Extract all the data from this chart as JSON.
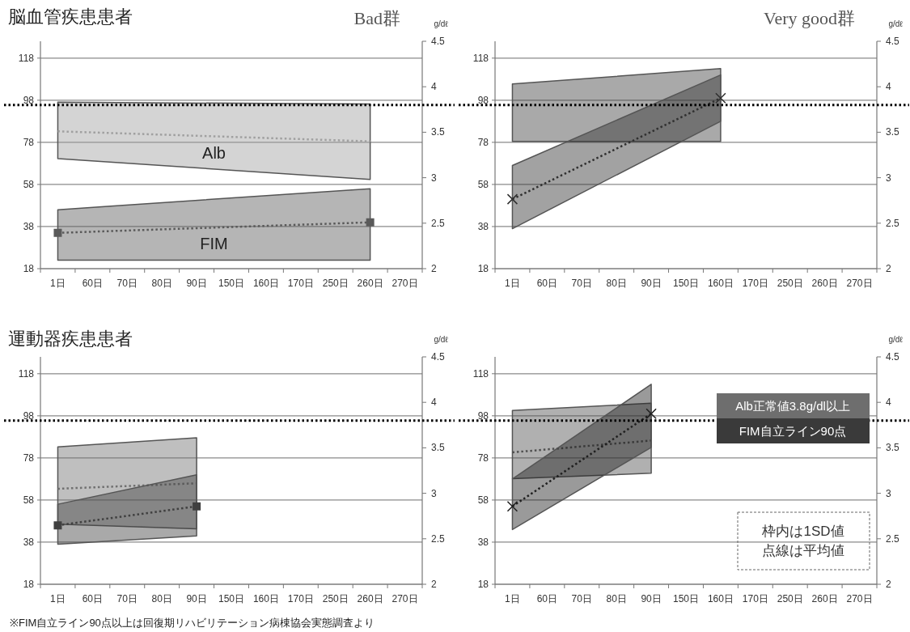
{
  "chart_data": [
    {
      "type": "line",
      "title": "脳血管疾患患者",
      "subtitle": "Bad群",
      "y2label": "g/dℓ",
      "categories": [
        "1日",
        "60日",
        "70日",
        "80日",
        "90日",
        "150日",
        "160日",
        "170日",
        "250日",
        "260日",
        "270日"
      ],
      "ylim": [
        18,
        126
      ],
      "yticks": [
        18,
        38,
        58,
        78,
        98,
        118
      ],
      "y2lim": [
        2,
        4.5
      ],
      "y2ticks": [
        2,
        2.5,
        3,
        3.5,
        4,
        4.5
      ],
      "grid": "y",
      "ref_lines": [
        {
          "axis": "y2",
          "value": 3.8,
          "color": "#000000",
          "line_style": "dotted"
        }
      ],
      "series": [
        {
          "name": "Alb",
          "axis": "y2",
          "color": "#a0a0a0",
          "line_style": "dotted",
          "values": [
            3.51,
            null,
            null,
            null,
            null,
            null,
            null,
            null,
            null,
            3.4,
            null
          ],
          "lower": [
            3.21,
            null,
            null,
            null,
            null,
            null,
            null,
            null,
            null,
            2.98,
            null
          ],
          "upper": [
            3.83,
            null,
            null,
            null,
            null,
            null,
            null,
            null,
            null,
            3.81,
            null
          ]
        },
        {
          "name": "FIM",
          "axis": "y",
          "color": "#5a5a5a",
          "line_style": "dotted",
          "marker": "square",
          "values": [
            35,
            null,
            null,
            null,
            null,
            null,
            null,
            null,
            null,
            40,
            null
          ],
          "lower": [
            22,
            null,
            null,
            null,
            null,
            null,
            null,
            null,
            null,
            22,
            null
          ],
          "upper": [
            46,
            null,
            null,
            null,
            null,
            null,
            null,
            null,
            null,
            56,
            null
          ]
        }
      ]
    },
    {
      "type": "line",
      "subtitle": "Very good群",
      "y2label": "g/dℓ",
      "categories": [
        "1日",
        "60日",
        "70日",
        "80日",
        "90日",
        "150日",
        "160日",
        "170日",
        "250日",
        "260日",
        "270日"
      ],
      "ylim": [
        18,
        126
      ],
      "yticks": [
        18,
        38,
        58,
        78,
        98,
        118
      ],
      "y2lim": [
        2,
        4.5
      ],
      "y2ticks": [
        2,
        2.5,
        3,
        3.5,
        4,
        4.5
      ],
      "grid": "y",
      "ref_lines": [
        {
          "axis": "y2",
          "value": 3.8,
          "color": "#000000",
          "line_style": "dotted"
        }
      ],
      "series": [
        {
          "axis": "y2",
          "color": "#404040",
          "values": [
            null,
            null,
            null,
            null,
            null,
            null,
            null,
            null,
            null,
            null,
            null
          ],
          "lower": [
            3.4,
            null,
            null,
            null,
            null,
            null,
            3.4,
            null,
            null,
            null,
            null
          ],
          "upper": [
            4.03,
            null,
            null,
            null,
            null,
            null,
            4.2,
            null,
            null,
            null,
            null
          ]
        },
        {
          "axis": "y",
          "color": "#303030",
          "line_style": "dotted",
          "marker": "cross",
          "values": [
            51,
            null,
            null,
            null,
            null,
            null,
            99,
            null,
            null,
            null,
            null
          ],
          "lower": [
            37,
            null,
            null,
            null,
            null,
            null,
            88,
            null,
            null,
            null,
            null
          ],
          "upper": [
            67,
            null,
            null,
            null,
            null,
            null,
            110,
            null,
            null,
            null,
            null
          ]
        }
      ]
    },
    {
      "type": "line",
      "title": "運動器疾患患者",
      "y2label": "g/dℓ",
      "categories": [
        "1日",
        "60日",
        "70日",
        "80日",
        "90日",
        "150日",
        "160日",
        "170日",
        "250日",
        "260日",
        "270日"
      ],
      "ylim": [
        18,
        126
      ],
      "yticks": [
        18,
        38,
        58,
        78,
        98,
        118
      ],
      "y2lim": [
        2,
        4.5
      ],
      "y2ticks": [
        2,
        2.5,
        3,
        3.5,
        4,
        4.5
      ],
      "grid": "y",
      "ref_lines": [
        {
          "axis": "y2",
          "value": 3.8,
          "color": "#000000",
          "line_style": "dotted"
        }
      ],
      "annotations": [
        "※FIM自立ライン90点以上は回復期リハビリテーション病棟協会実態調査より"
      ],
      "series": [
        {
          "axis": "y2",
          "color": "#707070",
          "line_style": "dotted",
          "values": [
            3.05,
            null,
            null,
            null,
            3.11,
            null,
            null,
            null,
            null,
            null,
            null
          ],
          "lower": [
            2.66,
            null,
            null,
            null,
            2.61,
            null,
            null,
            null,
            null,
            null,
            null
          ],
          "upper": [
            3.51,
            null,
            null,
            null,
            3.61,
            null,
            null,
            null,
            null,
            null,
            null
          ]
        },
        {
          "axis": "y",
          "color": "#404040",
          "line_style": "dotted",
          "marker": "square",
          "values": [
            46,
            null,
            null,
            null,
            55,
            null,
            null,
            null,
            null,
            null,
            null
          ],
          "lower": [
            37,
            null,
            null,
            null,
            41,
            null,
            null,
            null,
            null,
            null,
            null
          ],
          "upper": [
            56,
            null,
            null,
            null,
            70,
            null,
            null,
            null,
            null,
            null,
            null
          ]
        }
      ]
    },
    {
      "type": "line",
      "y2label": "g/dℓ",
      "categories": [
        "1日",
        "60日",
        "70日",
        "80日",
        "90日",
        "150日",
        "160日",
        "170日",
        "250日",
        "260日",
        "270日"
      ],
      "ylim": [
        18,
        126
      ],
      "yticks": [
        18,
        38,
        58,
        78,
        98,
        118
      ],
      "y2lim": [
        2,
        4.5
      ],
      "y2ticks": [
        2,
        2.5,
        3,
        3.5,
        4,
        4.5
      ],
      "grid": "y",
      "ref_lines": [
        {
          "axis": "y2",
          "value": 3.8,
          "color": "#000000",
          "line_style": "dotted"
        }
      ],
      "annotations": [
        "Alb正常値3.8g/dl以上",
        "FIM自立ライン90点",
        "枠内は1SD値",
        "点線は平均値"
      ],
      "series": [
        {
          "axis": "y2",
          "color": "#505050",
          "line_style": "dotted",
          "values": [
            3.45,
            null,
            null,
            null,
            3.58,
            null,
            null,
            null,
            null,
            null,
            null
          ],
          "lower": [
            3.16,
            null,
            null,
            null,
            3.22,
            null,
            null,
            null,
            null,
            null,
            null
          ],
          "upper": [
            3.91,
            null,
            null,
            null,
            3.99,
            null,
            null,
            null,
            null,
            null,
            null
          ]
        },
        {
          "axis": "y",
          "color": "#202020",
          "line_style": "dotted",
          "marker": "cross",
          "values": [
            55,
            null,
            null,
            null,
            99,
            null,
            null,
            null,
            null,
            null,
            null
          ],
          "lower": [
            44,
            null,
            null,
            null,
            83,
            null,
            null,
            null,
            null,
            null,
            null
          ],
          "upper": [
            68,
            null,
            null,
            null,
            113,
            null,
            null,
            null,
            null,
            null,
            null
          ]
        }
      ]
    }
  ]
}
